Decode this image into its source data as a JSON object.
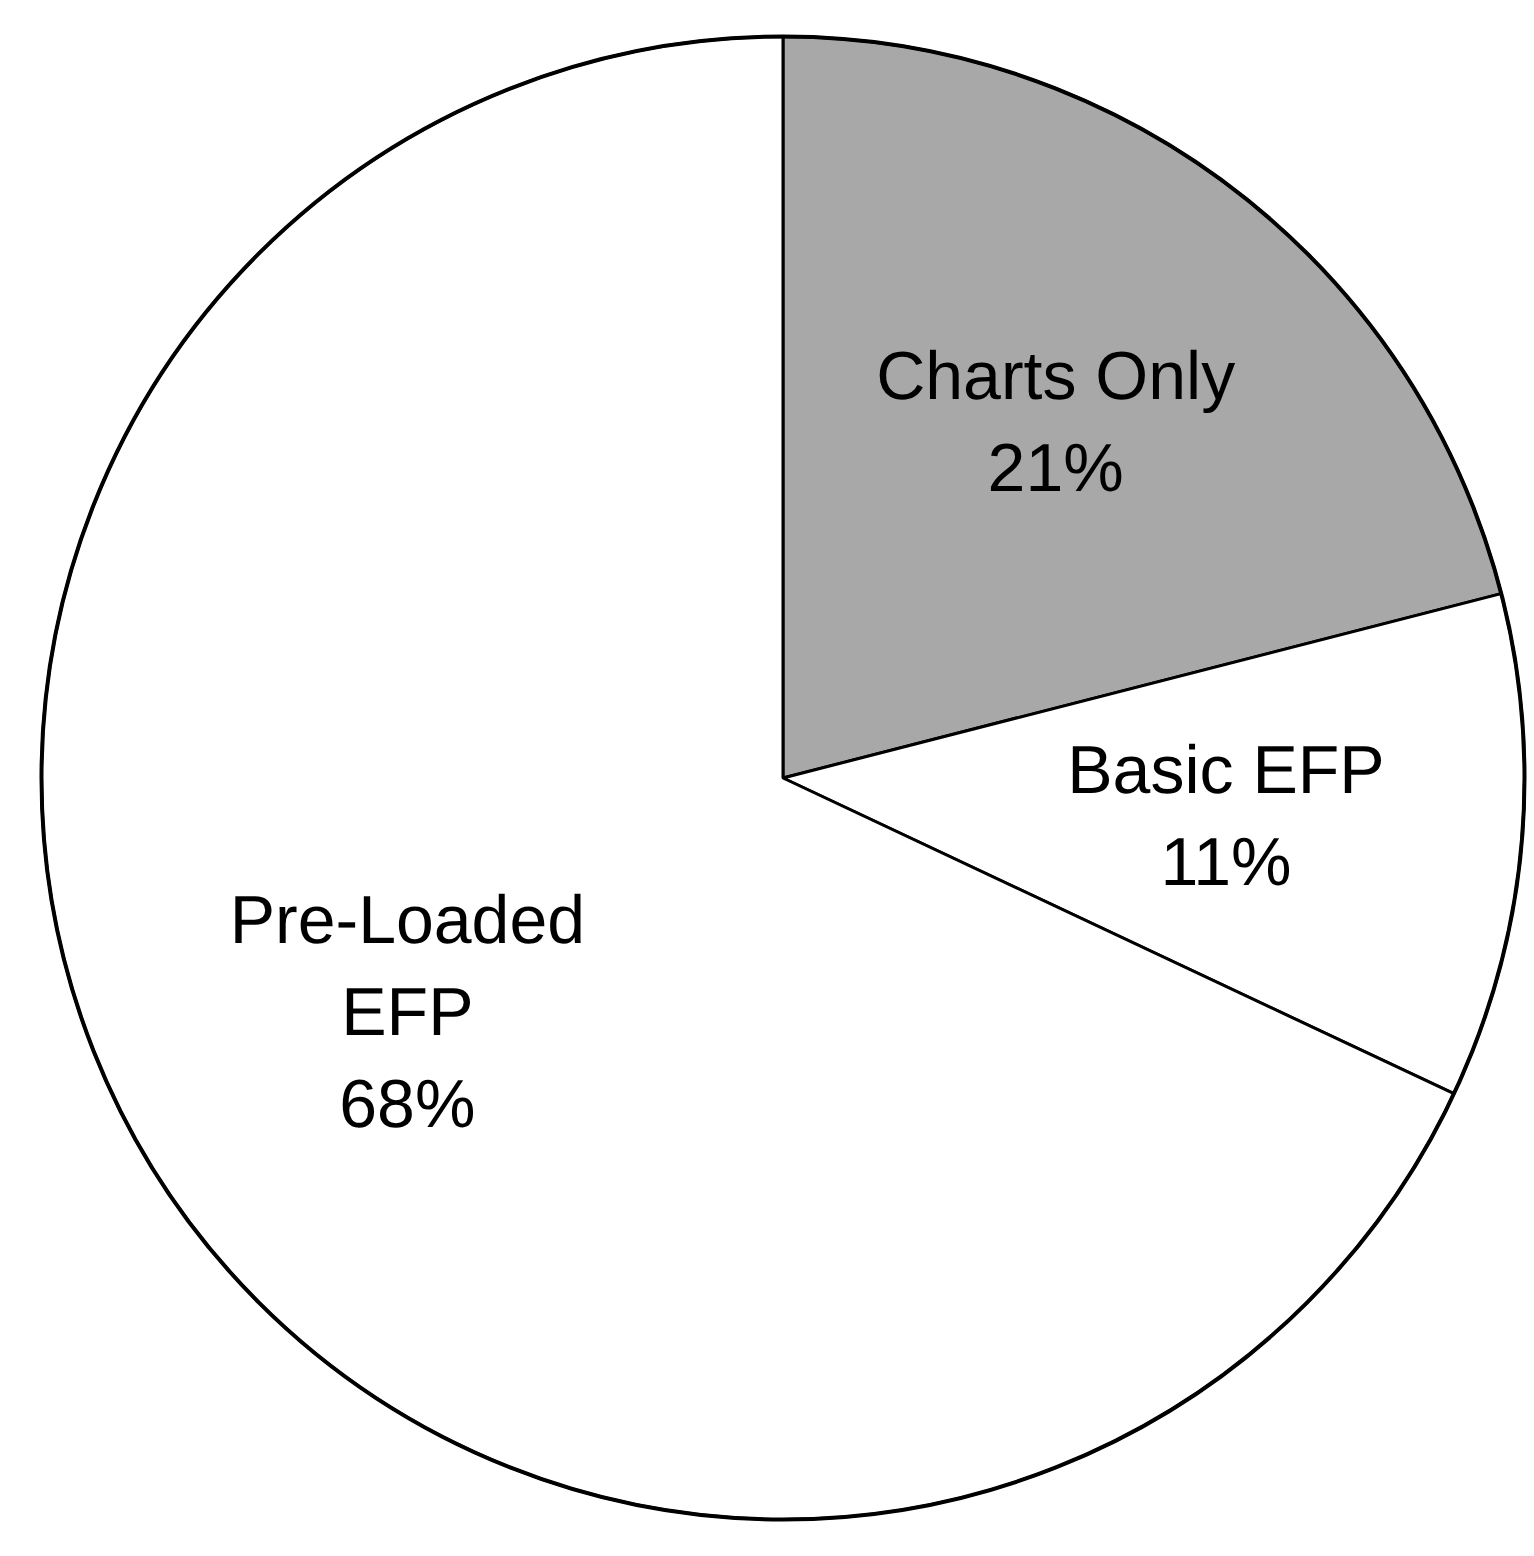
{
  "chart_data": {
    "type": "pie",
    "categories": [
      "Charts Only",
      "Basic EFP",
      "Pre-Loaded EFP"
    ],
    "values": [
      21,
      11,
      68
    ],
    "colors": [
      "#a8a8a8",
      "#ffffff",
      "#ffffff"
    ],
    "value_labels": [
      "21%",
      "11%",
      "68%"
    ],
    "legend": false
  }
}
